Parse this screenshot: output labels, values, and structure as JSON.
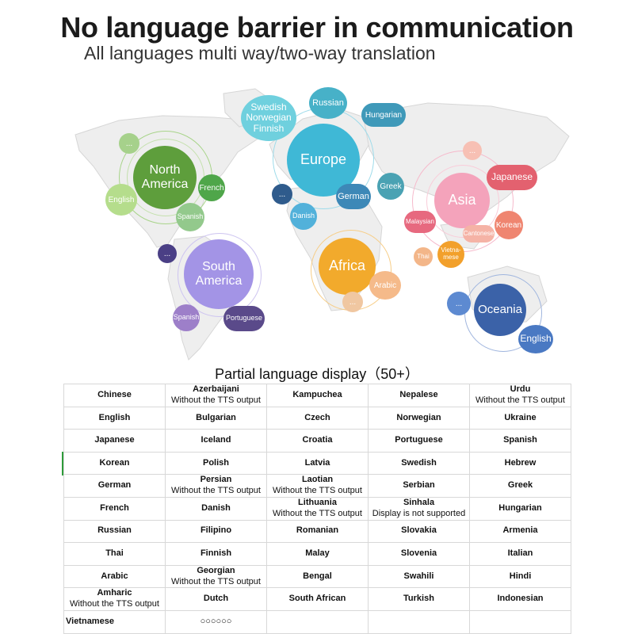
{
  "header": {
    "title": "No language barrier in communication",
    "subtitle": "All languages multi way/two-way translation"
  },
  "map": {
    "regions": [
      {
        "key": "north_america",
        "label_line1": "North",
        "label_line2": "America",
        "color": "#5e9e3c"
      },
      {
        "key": "europe",
        "label": "Europe",
        "color": "#3fb8d6"
      },
      {
        "key": "asia",
        "label": "Asia",
        "color": "#f07fa0"
      },
      {
        "key": "south_america",
        "label_line1": "South",
        "label_line2": "America",
        "color": "#a394e6"
      },
      {
        "key": "africa",
        "label": "Africa",
        "color": "#f2aa2c"
      },
      {
        "key": "oceania",
        "label": "Oceania",
        "color": "#3b62a8"
      }
    ],
    "languages": {
      "swedish_l1": "Swedish",
      "swedish_l2": "Norwegian",
      "swedish_l3": "Finnish",
      "russian": "Russian",
      "hungarian": "Hungarian",
      "greek": "Greek",
      "german": "German",
      "danish": "Danish",
      "english_na": "English",
      "french": "French",
      "spanish_na": "Spanish",
      "japanese": "Japanese",
      "korean": "Korean",
      "malaysian": "Malaysian",
      "cantonese": "Cantonese",
      "thai": "Thai",
      "vietnamese_l1": "Vietna-",
      "vietnamese_l2": "mese",
      "arabic": "Arabic",
      "spanish_sa": "Spanish",
      "portuguese": "Portuguese",
      "english_oc": "English",
      "ellipsis": "..."
    }
  },
  "table": {
    "caption": "Partial language display（50+）",
    "rows": [
      [
        {
          "name": "Chinese"
        },
        {
          "name": "Azerbaijani",
          "note": "Without the TTS output"
        },
        {
          "name": "Kampuchea"
        },
        {
          "name": "Nepalese"
        },
        {
          "name": "Urdu",
          "note": "Without the TTS output"
        }
      ],
      [
        {
          "name": "English"
        },
        {
          "name": "Bulgarian"
        },
        {
          "name": "Czech"
        },
        {
          "name": "Norwegian"
        },
        {
          "name": "Ukraine"
        }
      ],
      [
        {
          "name": "Japanese"
        },
        {
          "name": "Iceland"
        },
        {
          "name": "Croatia"
        },
        {
          "name": "Portuguese"
        },
        {
          "name": "Spanish"
        }
      ],
      [
        {
          "name": "Korean"
        },
        {
          "name": "Polish"
        },
        {
          "name": "Latvia"
        },
        {
          "name": "Swedish"
        },
        {
          "name": "Hebrew"
        }
      ],
      [
        {
          "name": "German"
        },
        {
          "name": "Persian",
          "note": "Without the TTS output"
        },
        {
          "name": "Laotian",
          "note": "Without the TTS output"
        },
        {
          "name": "Serbian"
        },
        {
          "name": "Greek"
        }
      ],
      [
        {
          "name": "French"
        },
        {
          "name": "Danish"
        },
        {
          "name": "Lithuania",
          "note": "Without the TTS output"
        },
        {
          "name": "Sinhala",
          "note": "Display is not supported"
        },
        {
          "name": "Hungarian"
        }
      ],
      [
        {
          "name": "Russian"
        },
        {
          "name": "Filipino"
        },
        {
          "name": "Romanian"
        },
        {
          "name": "Slovakia"
        },
        {
          "name": "Armenia"
        }
      ],
      [
        {
          "name": "Thai"
        },
        {
          "name": "Finnish"
        },
        {
          "name": "Malay"
        },
        {
          "name": "Slovenia"
        },
        {
          "name": "Italian"
        }
      ],
      [
        {
          "name": "Arabic"
        },
        {
          "name": "Georgian",
          "note": "Without the TTS output"
        },
        {
          "name": "Bengal"
        },
        {
          "name": "Swahili"
        },
        {
          "name": "Hindi"
        }
      ],
      [
        {
          "name": "Amharic",
          "note": "Without the TTS output"
        },
        {
          "name": "Dutch"
        },
        {
          "name": "South African"
        },
        {
          "name": "Turkish"
        },
        {
          "name": "Indonesian"
        }
      ],
      [
        {
          "name": "Vietnamese"
        },
        {
          "name": "○○○○○○"
        },
        {
          "name": ""
        },
        {
          "name": ""
        },
        {
          "name": ""
        }
      ]
    ]
  }
}
